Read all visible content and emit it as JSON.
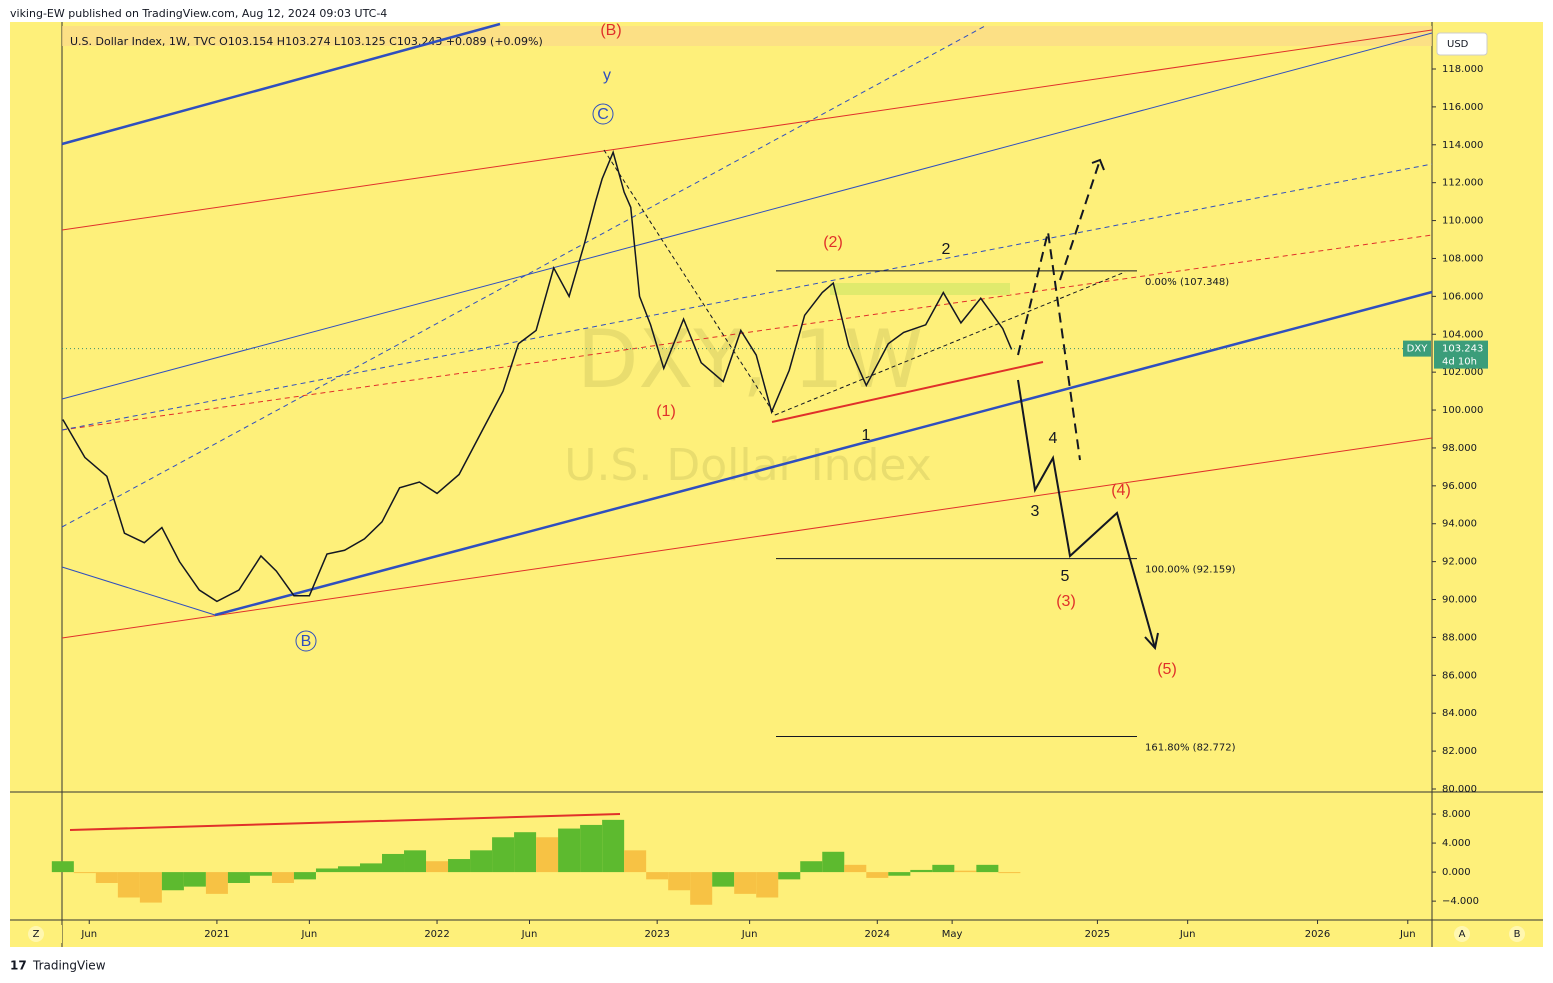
{
  "header": {
    "published": "viking-EW published on TradingView.com, Aug 12, 2024 09:03 UTC-4",
    "legend": "U.S. Dollar Index, 1W, TVC  O103.154  H103.274  L103.125  C103.243  +0.089 (+0.09%)",
    "currency": "USD",
    "watermark_symbol": "DXY, 1W",
    "watermark_name": "U.S. Dollar Index",
    "footer": "TradingView"
  },
  "buttons": [
    "Z",
    "A",
    "B"
  ],
  "chart_data": [
    {
      "type": "line",
      "symbol": "DXY",
      "last_price": 103.243,
      "countdown": "4d 10h",
      "color": "#131722",
      "x": [
        2020.3,
        2020.4,
        2020.5,
        2020.58,
        2020.67,
        2020.75,
        2020.83,
        2020.92,
        2021.0,
        2021.1,
        2021.2,
        2021.27,
        2021.35,
        2021.42,
        2021.5,
        2021.58,
        2021.67,
        2021.75,
        2021.83,
        2021.92,
        2022.0,
        2022.1,
        2022.2,
        2022.3,
        2022.37,
        2022.45,
        2022.53,
        2022.6,
        2022.67,
        2022.72,
        2022.75,
        2022.8,
        2022.85,
        2022.88,
        2022.92,
        2022.97,
        2023.03,
        2023.12,
        2023.2,
        2023.3,
        2023.38,
        2023.45,
        2023.52,
        2023.6,
        2023.67,
        2023.75,
        2023.8,
        2023.87,
        2023.95,
        2024.05,
        2024.12,
        2024.22,
        2024.3,
        2024.38,
        2024.47,
        2024.52,
        2024.57,
        2024.61
      ],
      "series": [
        {
          "name": "DXY",
          "color": "#131722",
          "values": [
            99.5,
            97.5,
            96.5,
            93.5,
            93,
            93.8,
            92,
            90.5,
            89.9,
            90.5,
            92.3,
            91.5,
            90.2,
            90.2,
            92.4,
            92.6,
            93.2,
            94.1,
            95.9,
            96.2,
            95.6,
            96.6,
            98.8,
            101,
            103.5,
            104.2,
            107.5,
            106,
            108.8,
            111,
            112.2,
            113.6,
            111.5,
            110.7,
            106,
            104.5,
            102.2,
            104.8,
            102.5,
            101.5,
            104.2,
            102.9,
            99.9,
            102.1,
            105,
            106.2,
            106.7,
            103.4,
            101.3,
            103.5,
            104.1,
            104.5,
            106.2,
            104.6,
            105.9,
            105.1,
            104.3,
            103.2
          ]
        }
      ],
      "fib_levels": [
        {
          "value": 107.348,
          "label": "0.00% (107.348)"
        },
        {
          "value": 92.159,
          "label": "100.00% (92.159)"
        },
        {
          "value": 82.772,
          "label": "161.80% (82.772)"
        }
      ],
      "annotations": [
        "(B)",
        "y",
        "C",
        "B",
        "(1)",
        "(2)",
        "2",
        "1",
        "(3)",
        "3",
        "4",
        "5",
        "(4)",
        "(5)"
      ],
      "xlim": [
        2020.06,
        2026.52
      ],
      "ylim": [
        80,
        120.48
      ],
      "xticks": [
        {
          "value": 2020.42,
          "label": "Jun"
        },
        {
          "value": 2021,
          "label": "2021"
        },
        {
          "value": 2021.42,
          "label": "Jun"
        },
        {
          "value": 2022,
          "label": "2022"
        },
        {
          "value": 2022.42,
          "label": "Jun"
        },
        {
          "value": 2023,
          "label": "2023"
        },
        {
          "value": 2023.42,
          "label": "Jun"
        },
        {
          "value": 2024,
          "label": "2024"
        },
        {
          "value": 2024.34,
          "label": "May"
        },
        {
          "value": 2025,
          "label": "2025"
        },
        {
          "value": 2025.41,
          "label": "Jun"
        },
        {
          "value": 2026,
          "label": "2026"
        },
        {
          "value": 2026.41,
          "label": "Jun"
        }
      ],
      "yticks": [
        {
          "value": 80,
          "label": "80.000"
        },
        {
          "value": 82,
          "label": "82.000"
        },
        {
          "value": 84,
          "label": "84.000"
        },
        {
          "value": 86,
          "label": "86.000"
        },
        {
          "value": 88,
          "label": "88.000"
        },
        {
          "value": 90,
          "label": "90.000"
        },
        {
          "value": 92,
          "label": "92.000"
        },
        {
          "value": 94,
          "label": "94.000"
        },
        {
          "value": 96,
          "label": "96.000"
        },
        {
          "value": 98,
          "label": "98.000"
        },
        {
          "value": 100,
          "label": "100.000"
        },
        {
          "value": 102,
          "label": "102.000"
        },
        {
          "value": 104,
          "label": "104.000"
        },
        {
          "value": 106,
          "label": "106.000"
        },
        {
          "value": 108,
          "label": "108.000"
        },
        {
          "value": 110,
          "label": "110.000"
        },
        {
          "value": 112,
          "label": "112.000"
        },
        {
          "value": 114,
          "label": "114.000"
        },
        {
          "value": 116,
          "label": "116.000"
        },
        {
          "value": 118,
          "label": "118.000"
        }
      ]
    },
    {
      "type": "bar",
      "rising_color": "#5dba2f",
      "falling_color": "#f7c244",
      "bar_width": 0.1,
      "x": [
        2020.3,
        2020.4,
        2020.5,
        2020.6,
        2020.7,
        2020.8,
        2020.9,
        2021.0,
        2021.1,
        2021.2,
        2021.3,
        2021.4,
        2021.5,
        2021.6,
        2021.7,
        2021.8,
        2021.9,
        2022.0,
        2022.1,
        2022.2,
        2022.3,
        2022.4,
        2022.5,
        2022.6,
        2022.7,
        2022.8,
        2022.9,
        2023.0,
        2023.1,
        2023.2,
        2023.3,
        2023.4,
        2023.5,
        2023.6,
        2023.7,
        2023.8,
        2023.9,
        2024.0,
        2024.1,
        2024.2,
        2024.3,
        2024.4,
        2024.5,
        2024.6
      ],
      "values": [
        1.5,
        0,
        -1.5,
        -3.5,
        -4.2,
        -2.5,
        -2.0,
        -3.0,
        -1.5,
        -0.5,
        -1.5,
        -1.0,
        0.5,
        0.8,
        1.2,
        2.5,
        3.0,
        1.5,
        1.8,
        3.0,
        4.8,
        5.5,
        4.8,
        6.0,
        6.5,
        7.2,
        3.0,
        -1.0,
        -2.5,
        -4.5,
        -2.0,
        -3.0,
        -3.5,
        -1.0,
        1.5,
        2.8,
        1.0,
        -0.8,
        -0.5,
        0.3,
        1.0,
        0.2,
        1.0,
        0
      ],
      "ylim": [
        -6.6,
        10.9
      ],
      "yticks": [
        {
          "value": 8,
          "label": "8.000"
        },
        {
          "value": 4,
          "label": "4.000"
        },
        {
          "value": 0,
          "label": "0.000"
        },
        {
          "value": -4,
          "label": "−4.000"
        }
      ]
    }
  ]
}
